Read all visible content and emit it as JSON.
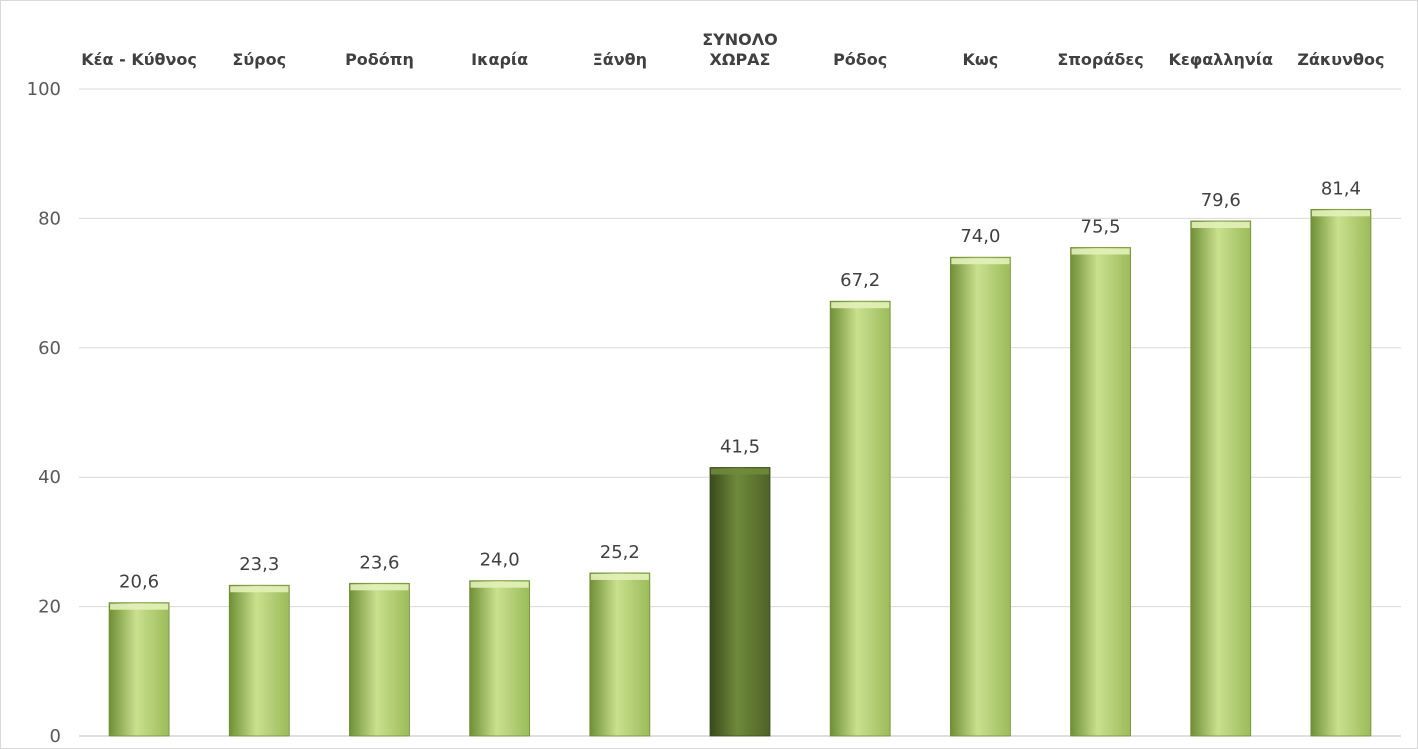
{
  "chart_data": {
    "type": "bar",
    "title": "",
    "xlabel": "",
    "ylabel": "",
    "categories": [
      "Κέα - Κύθνος",
      "Σύρος",
      "Ροδόπη",
      "Ικαρία",
      "Ξάνθη",
      "ΣΥΝΟΛΟ ΧΩΡΑΣ",
      "Ρόδος",
      "Κως",
      "Σποράδες",
      "Κεφαλληνία",
      "Ζάκυνθος"
    ],
    "values": [
      20.6,
      23.3,
      23.6,
      24.0,
      25.2,
      41.5,
      67.2,
      74.0,
      75.5,
      79.6,
      81.4
    ],
    "value_labels": [
      "20,6",
      "23,3",
      "23,6",
      "24,0",
      "25,2",
      "41,5",
      "67,2",
      "74,0",
      "75,5",
      "79,6",
      "81,4"
    ],
    "highlight_category": "ΣΥΝΟΛΟ ΧΩΡΑΣ",
    "ylim": [
      0,
      100
    ],
    "yticks": [
      0,
      20,
      40,
      60,
      80,
      100
    ],
    "grid": true,
    "legend": "none",
    "category_label_position": "top",
    "colors": {
      "bar": "#9bbb59",
      "bar_light": "#c9e08f",
      "bar_dark": "#6f8f35",
      "highlight": "#4f6228",
      "highlight_light": "#6e8a3a",
      "highlight_dark": "#3a4a1c"
    }
  }
}
